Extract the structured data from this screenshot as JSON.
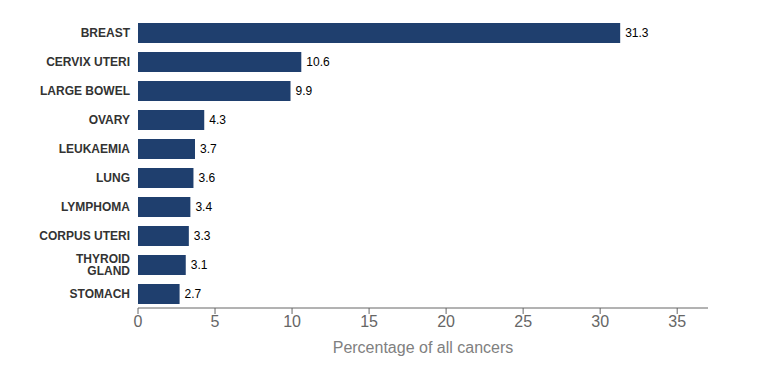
{
  "chart_data": {
    "type": "bar",
    "orientation": "horizontal",
    "categories": [
      "STOMACH",
      "THYROID GLAND",
      "CORPUS UTERI",
      "LYMPHOMA",
      "LUNG",
      "LEUKAEMIA",
      "OVARY",
      "LARGE BOWEL",
      "CERVIX UTERI",
      "BREAST"
    ],
    "values": [
      2.7,
      3.1,
      3.3,
      3.4,
      3.6,
      3.7,
      4.3,
      9.9,
      10.6,
      31.3
    ],
    "color": "#1f3f6e",
    "xlabel": "Percentage of all cancers",
    "xlim": [
      0,
      37
    ],
    "xticks": [
      0,
      5,
      10,
      15,
      20,
      25,
      30,
      35
    ],
    "data_labels": true,
    "grid": false
  }
}
